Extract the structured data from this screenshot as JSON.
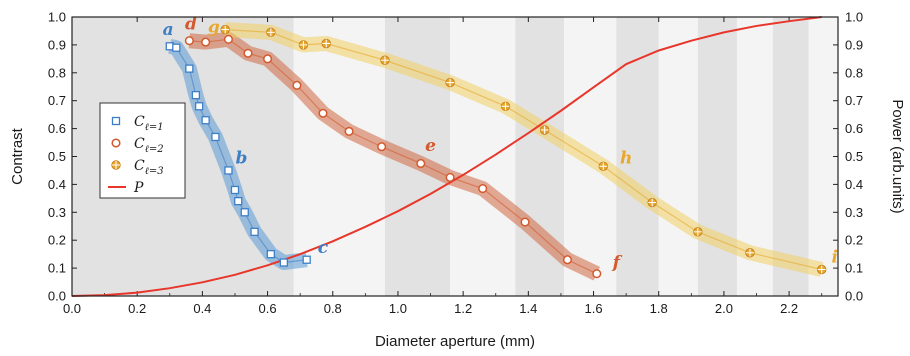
{
  "chart_data": {
    "type": "scatter",
    "title": "",
    "xlabel": "Diameter aperture (mm)",
    "ylabel": "Contrast",
    "y2label": "Power (arb.units)",
    "xlim": [
      0.0,
      2.35
    ],
    "ylim": [
      0.0,
      1.0
    ],
    "y2lim": [
      0.0,
      1.0
    ],
    "x_ticks": [
      "0.0",
      "0.2",
      "0.4",
      "0.6",
      "0.8",
      "1.0",
      "1.2",
      "1.4",
      "1.6",
      "1.8",
      "2.0",
      "2.2"
    ],
    "y_ticks": [
      "0.0",
      "0.1",
      "0.2",
      "0.3",
      "0.4",
      "0.5",
      "0.6",
      "0.7",
      "0.8",
      "0.9",
      "1.0"
    ],
    "y2_ticks": [
      "0.0",
      "0.1",
      "0.2",
      "0.3",
      "0.4",
      "0.5",
      "0.6",
      "0.7",
      "0.8",
      "0.9",
      "1.0"
    ],
    "legend_position": "left",
    "background_bands": [
      {
        "x": [
          0.0,
          0.68
        ],
        "color": "#e2e2e2"
      },
      {
        "x": [
          0.68,
          0.96
        ],
        "color": "#f4f4f4"
      },
      {
        "x": [
          0.96,
          1.16
        ],
        "color": "#e2e2e2"
      },
      {
        "x": [
          1.16,
          1.36
        ],
        "color": "#f4f4f4"
      },
      {
        "x": [
          1.36,
          1.51
        ],
        "color": "#e2e2e2"
      },
      {
        "x": [
          1.51,
          1.67
        ],
        "color": "#f4f4f4"
      },
      {
        "x": [
          1.67,
          1.8
        ],
        "color": "#e2e2e2"
      },
      {
        "x": [
          1.8,
          1.92
        ],
        "color": "#f4f4f4"
      },
      {
        "x": [
          1.92,
          2.04
        ],
        "color": "#e2e2e2"
      },
      {
        "x": [
          2.04,
          2.15
        ],
        "color": "#f4f4f4"
      },
      {
        "x": [
          2.15,
          2.26
        ],
        "color": "#e2e2e2"
      },
      {
        "x": [
          2.26,
          2.35
        ],
        "color": "#f4f4f4"
      }
    ],
    "series": [
      {
        "legend_main": "C",
        "legend_sub": "ℓ=1",
        "marker": "square",
        "color": "#3d7fc6",
        "band_color": "#5b9bd5",
        "x": [
          0.3,
          0.32,
          0.36,
          0.38,
          0.39,
          0.41,
          0.44,
          0.48,
          0.5,
          0.51,
          0.53,
          0.56,
          0.61,
          0.65,
          0.72
        ],
        "y": [
          0.895,
          0.89,
          0.815,
          0.72,
          0.68,
          0.63,
          0.57,
          0.45,
          0.38,
          0.34,
          0.3,
          0.23,
          0.15,
          0.12,
          0.13
        ]
      },
      {
        "legend_main": "C",
        "legend_sub": "ℓ=2",
        "marker": "circle",
        "color": "#d35a2e",
        "band_color": "#cf6a44",
        "x": [
          0.36,
          0.41,
          0.48,
          0.54,
          0.6,
          0.69,
          0.77,
          0.85,
          0.95,
          1.07,
          1.16,
          1.26,
          1.39,
          1.52,
          1.61
        ],
        "y": [
          0.915,
          0.91,
          0.92,
          0.87,
          0.85,
          0.755,
          0.655,
          0.59,
          0.535,
          0.475,
          0.425,
          0.385,
          0.265,
          0.13,
          0.08
        ]
      },
      {
        "legend_main": "C",
        "legend_sub": "ℓ=3",
        "marker": "circle-plus",
        "color": "#e8a82e",
        "band_color": "#f0cf63",
        "x": [
          0.47,
          0.61,
          0.71,
          0.78,
          0.96,
          1.16,
          1.33,
          1.45,
          1.63,
          1.78,
          1.92,
          2.08,
          2.3
        ],
        "y": [
          0.955,
          0.945,
          0.9,
          0.905,
          0.845,
          0.765,
          0.68,
          0.595,
          0.465,
          0.335,
          0.23,
          0.155,
          0.095
        ]
      }
    ],
    "power_curve": {
      "legend_main": "P",
      "color": "#e8362b",
      "x": [
        0.0,
        0.1,
        0.2,
        0.3,
        0.4,
        0.5,
        0.6,
        0.7,
        0.8,
        0.9,
        1.0,
        1.1,
        1.2,
        1.3,
        1.4,
        1.5,
        1.6,
        1.7,
        1.8,
        1.9,
        2.0,
        2.1,
        2.2,
        2.3
      ],
      "y": [
        0.0,
        0.003,
        0.012,
        0.028,
        0.049,
        0.076,
        0.11,
        0.15,
        0.196,
        0.248,
        0.304,
        0.366,
        0.434,
        0.507,
        0.584,
        0.664,
        0.748,
        0.831,
        0.88,
        0.915,
        0.945,
        0.968,
        0.985,
        1.0
      ]
    },
    "annotations": [
      {
        "text": "a",
        "x": 0.295,
        "y": 0.935,
        "color": "#3d7fc6"
      },
      {
        "text": "b",
        "x": 0.52,
        "y": 0.475,
        "color": "#3d7fc6"
      },
      {
        "text": "c",
        "x": 0.77,
        "y": 0.155,
        "color": "#3d7fc6"
      },
      {
        "text": "d",
        "x": 0.365,
        "y": 0.955,
        "color": "#d35a2e"
      },
      {
        "text": "e",
        "x": 1.1,
        "y": 0.52,
        "color": "#d35a2e"
      },
      {
        "text": "f",
        "x": 1.67,
        "y": 0.1,
        "color": "#d35a2e"
      },
      {
        "text": "g",
        "x": 0.435,
        "y": 0.945,
        "color": "#e8a82e"
      },
      {
        "text": "h",
        "x": 1.7,
        "y": 0.475,
        "color": "#e8a82e"
      },
      {
        "text": "i",
        "x": 2.34,
        "y": 0.12,
        "color": "#e8a82e"
      }
    ]
  }
}
